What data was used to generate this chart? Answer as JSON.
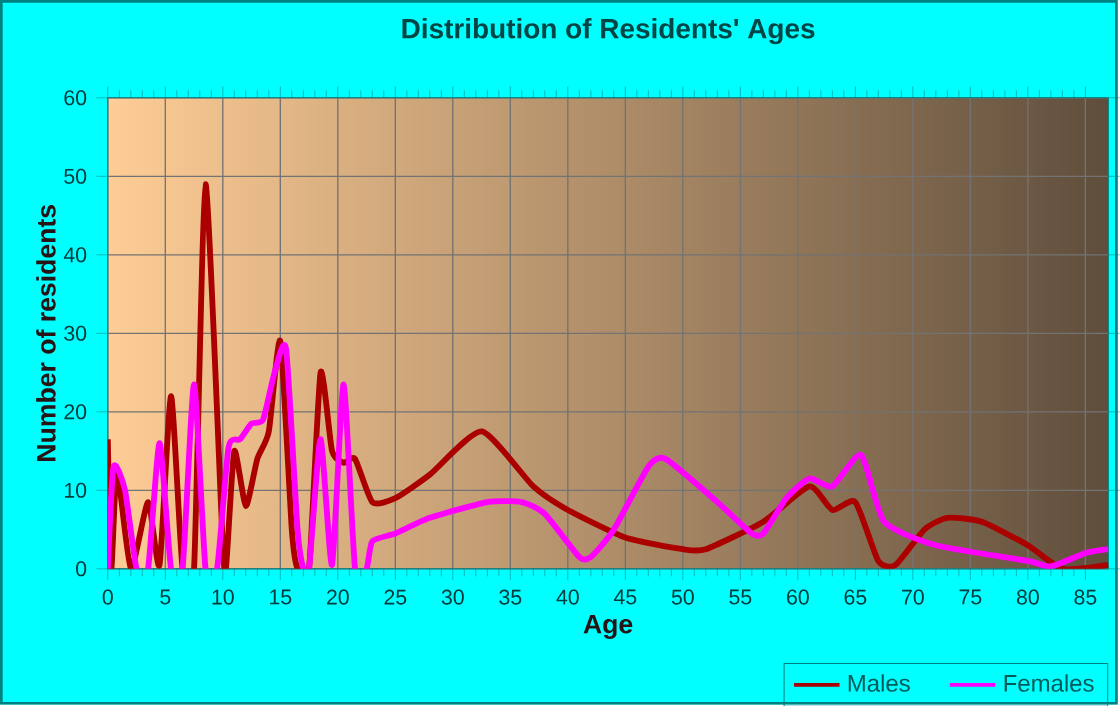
{
  "chart_data": {
    "type": "line",
    "title": "Distribution of Residents' Ages",
    "xlabel": "Age",
    "ylabel": "Number of residents",
    "xlim": [
      0,
      87
    ],
    "xticks": [
      0,
      5,
      10,
      15,
      20,
      25,
      30,
      35,
      40,
      45,
      50,
      55,
      60,
      65,
      70,
      75,
      80,
      85
    ],
    "ylim": [
      0,
      60
    ],
    "yticks": [
      0,
      10,
      20,
      30,
      40,
      50,
      60
    ],
    "grid": true,
    "legend": "bottom right",
    "marker": "none",
    "line_style": "solid",
    "series": [
      {
        "name": "Males",
        "color": "#aa0000",
        "x": [
          0,
          0.3,
          0.8,
          2,
          3.5,
          4.5,
          5.5,
          6.5,
          7.5,
          8.5,
          10,
          10.3,
          11,
          12,
          13,
          14,
          15,
          16,
          16.5,
          17.5,
          18.5,
          19.5,
          20.5,
          21.5,
          23,
          25,
          28,
          32.5,
          37,
          40,
          45,
          50,
          52,
          57,
          61,
          63,
          65,
          67,
          68.5,
          71,
          73,
          76,
          80,
          83,
          87
        ],
        "values": [
          16.5,
          0,
          12.5,
          0,
          8.5,
          0.5,
          22,
          0,
          0,
          49,
          3,
          0.5,
          15,
          8,
          14,
          17.5,
          29,
          5,
          0,
          0,
          25,
          15,
          13.5,
          14,
          8.5,
          9,
          12,
          17.5,
          10.5,
          7.5,
          4,
          2.5,
          2.5,
          6,
          10.5,
          7.5,
          8.5,
          1,
          0.5,
          5,
          6.5,
          6,
          3,
          0,
          0.5
        ]
      },
      {
        "name": "Females",
        "color": "#ff00ff",
        "x": [
          0,
          0.5,
          1.5,
          2.5,
          3.5,
          4.5,
          5.5,
          6.5,
          7.5,
          8.5,
          9.5,
          10.5,
          11.5,
          12.5,
          13.5,
          14.5,
          15.5,
          16.5,
          17,
          17.5,
          18.5,
          19.5,
          20.5,
          21.5,
          22.5,
          23,
          25,
          28,
          33,
          36,
          38,
          41,
          42,
          44,
          47,
          48.5,
          53,
          56,
          57,
          59,
          61,
          63,
          65.5,
          67.5,
          72,
          80,
          82,
          85,
          87
        ],
        "values": [
          0,
          13,
          10,
          0,
          0,
          16,
          0,
          0,
          23.5,
          0,
          0,
          15.5,
          16.5,
          18.5,
          19,
          25,
          28,
          5,
          0,
          0,
          16.5,
          0.5,
          23.5,
          0,
          0,
          3.5,
          4.5,
          6.5,
          8.5,
          8.5,
          7,
          1.5,
          1.5,
          5,
          13,
          14,
          8.5,
          4.5,
          4.5,
          9,
          11.5,
          10.5,
          14.5,
          6,
          3,
          1,
          0.3,
          2,
          2.5
        ]
      }
    ]
  }
}
